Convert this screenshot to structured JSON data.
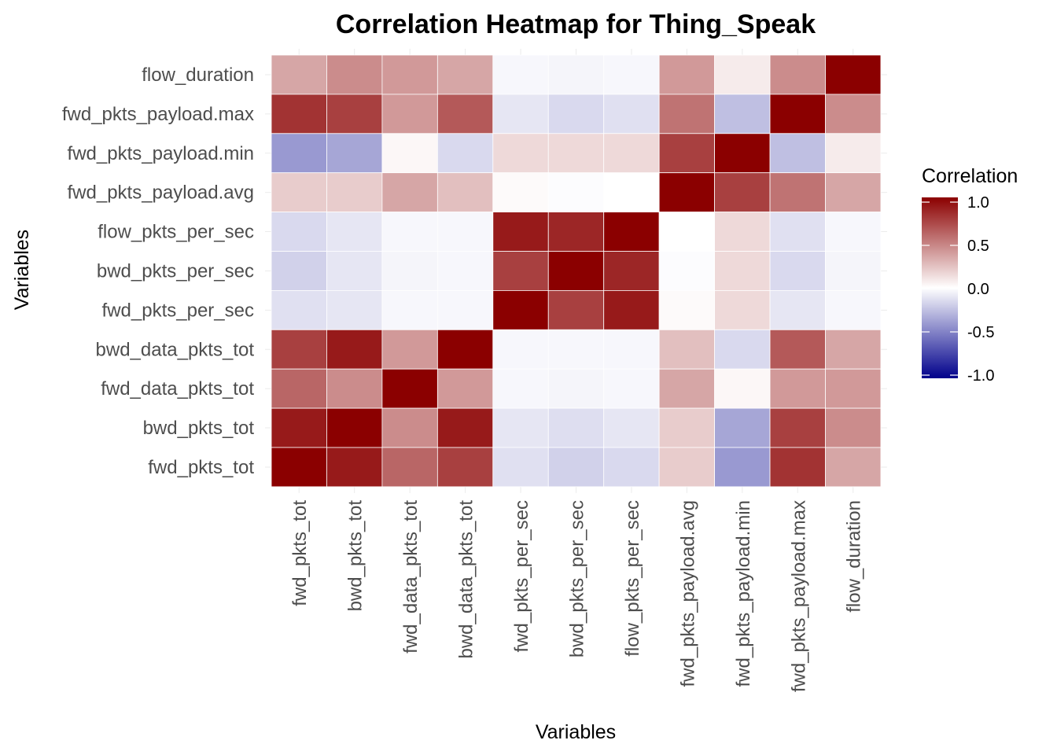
{
  "chart_data": {
    "type": "heatmap",
    "title": "Correlation Heatmap for Thing_Speak",
    "xlabel": "Variables",
    "ylabel": "Variables",
    "x_categories": [
      "fwd_pkts_tot",
      "bwd_pkts_tot",
      "fwd_data_pkts_tot",
      "bwd_data_pkts_tot",
      "fwd_pkts_per_sec",
      "bwd_pkts_per_sec",
      "flow_pkts_per_sec",
      "fwd_pkts_payload.avg",
      "fwd_pkts_payload.min",
      "fwd_pkts_payload.max",
      "flow_duration"
    ],
    "y_categories_top_to_bottom": [
      "flow_duration",
      "fwd_pkts_payload.max",
      "fwd_pkts_payload.min",
      "fwd_pkts_payload.avg",
      "flow_pkts_per_sec",
      "bwd_pkts_per_sec",
      "fwd_pkts_per_sec",
      "bwd_data_pkts_tot",
      "fwd_data_pkts_tot",
      "bwd_pkts_tot",
      "fwd_pkts_tot"
    ],
    "values": [
      [
        0.35,
        0.45,
        0.4,
        0.35,
        -0.03,
        -0.04,
        -0.03,
        0.4,
        0.08,
        0.45,
        1.0
      ],
      [
        0.8,
        0.75,
        0.4,
        0.65,
        -0.1,
        -0.15,
        -0.12,
        0.55,
        -0.25,
        1.0,
        0.45
      ],
      [
        -0.4,
        -0.35,
        0.03,
        -0.15,
        0.15,
        0.15,
        0.15,
        0.75,
        1.0,
        -0.25,
        0.08
      ],
      [
        0.2,
        0.2,
        0.35,
        0.25,
        0.02,
        -0.01,
        0.0,
        1.0,
        0.75,
        0.55,
        0.35
      ],
      [
        -0.15,
        -0.1,
        -0.03,
        -0.03,
        0.9,
        0.85,
        1.0,
        0.0,
        0.15,
        -0.12,
        -0.03
      ],
      [
        -0.18,
        -0.1,
        -0.04,
        -0.03,
        0.75,
        1.0,
        0.85,
        -0.01,
        0.15,
        -0.15,
        -0.04
      ],
      [
        -0.12,
        -0.1,
        -0.03,
        -0.03,
        1.0,
        0.75,
        0.9,
        0.02,
        0.15,
        -0.1,
        -0.03
      ],
      [
        0.75,
        0.9,
        0.4,
        1.0,
        -0.03,
        -0.03,
        -0.03,
        0.25,
        -0.15,
        0.65,
        0.35
      ],
      [
        0.6,
        0.45,
        1.0,
        0.4,
        -0.03,
        -0.04,
        -0.03,
        0.35,
        0.03,
        0.4,
        0.4
      ],
      [
        0.9,
        1.0,
        0.45,
        0.9,
        -0.1,
        -0.13,
        -0.1,
        0.2,
        -0.35,
        0.75,
        0.45
      ],
      [
        1.0,
        0.9,
        0.6,
        0.75,
        -0.12,
        -0.18,
        -0.15,
        0.2,
        -0.4,
        0.8,
        0.35
      ]
    ],
    "color_scale": {
      "low": "#00008B",
      "mid": "#FFFFFF",
      "high": "#8B0000",
      "limits": [
        -1,
        1
      ]
    },
    "legend": {
      "title": "Correlation",
      "ticks": [
        1.0,
        0.5,
        0.0,
        -0.5,
        -1.0
      ],
      "tick_labels": [
        "1.0",
        "0.5",
        "0.0",
        "-0.5",
        "-1.0"
      ],
      "position": "right"
    },
    "grid": true
  }
}
